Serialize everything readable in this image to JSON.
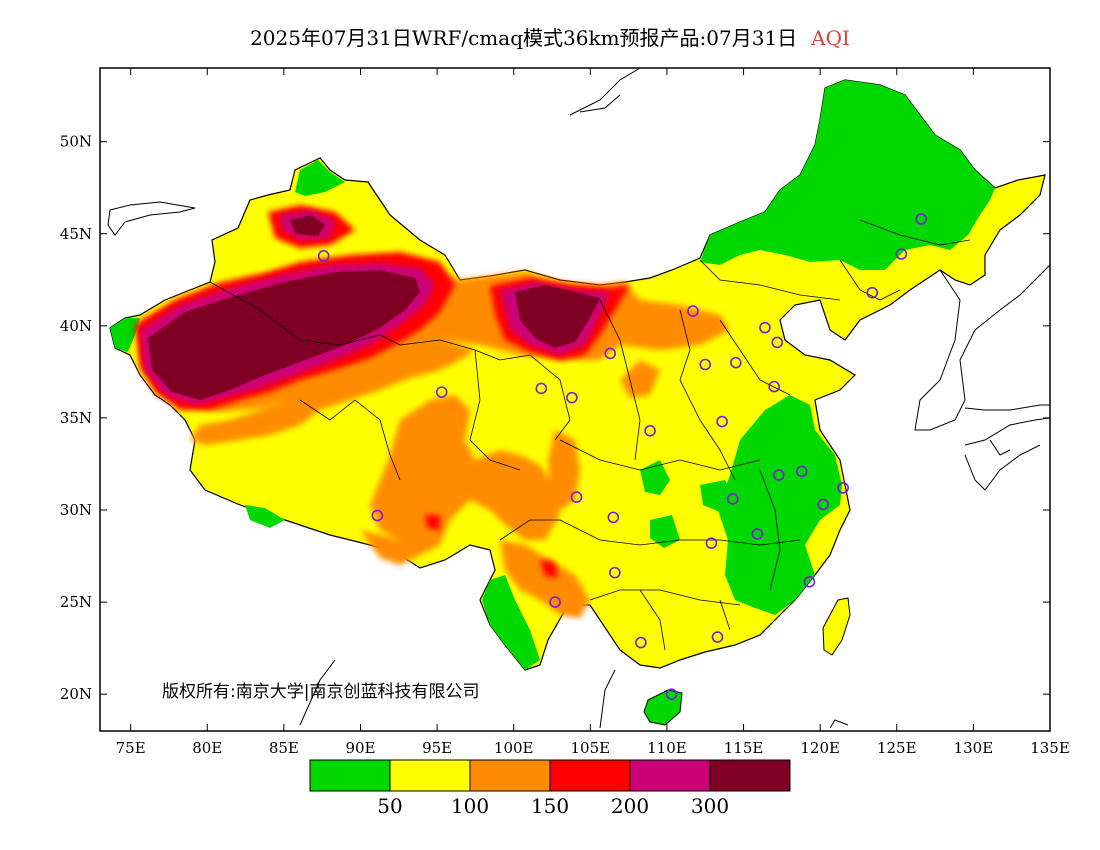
{
  "title": {
    "main": "2025年07月31日WRF/cmaq模式36km预报产品:07月31日",
    "variable": "AQI",
    "variable_color": "#d4453c"
  },
  "map": {
    "lat_labels": [
      "50N",
      "45N",
      "40N",
      "35N",
      "30N",
      "25N",
      "20N"
    ],
    "lat_values": [
      50,
      45,
      40,
      35,
      30,
      25,
      20
    ],
    "lon_labels": [
      "75E",
      "80E",
      "85E",
      "90E",
      "95E",
      "100E",
      "105E",
      "110E",
      "115E",
      "120E",
      "125E",
      "130E",
      "135E"
    ],
    "lon_values": [
      75,
      80,
      85,
      90,
      95,
      100,
      105,
      110,
      115,
      120,
      125,
      130,
      135
    ],
    "extent": {
      "lon_min": 73,
      "lon_max": 135,
      "lat_min": 18,
      "lat_max": 54
    },
    "copyright": "版权所有:南京大学|南京创蓝科技有限公司"
  },
  "legend": {
    "colors": [
      "#00d800",
      "#ffff00",
      "#ff8c00",
      "#ff0000",
      "#cc0077",
      "#7f0022"
    ],
    "labels": [
      "50",
      "100",
      "150",
      "200",
      "300"
    ],
    "categories": [
      "0-50",
      "50-100",
      "100-150",
      "150-200",
      "200-300",
      ">300"
    ]
  },
  "stations": [
    {
      "lon": 126.6,
      "lat": 45.8
    },
    {
      "lon": 125.3,
      "lat": 43.9
    },
    {
      "lon": 123.4,
      "lat": 41.8
    },
    {
      "lon": 116.4,
      "lat": 39.9
    },
    {
      "lon": 117.2,
      "lat": 39.1
    },
    {
      "lon": 111.7,
      "lat": 40.8
    },
    {
      "lon": 114.5,
      "lat": 38.0
    },
    {
      "lon": 112.5,
      "lat": 37.9
    },
    {
      "lon": 106.3,
      "lat": 38.5
    },
    {
      "lon": 103.8,
      "lat": 36.1
    },
    {
      "lon": 101.8,
      "lat": 36.6
    },
    {
      "lon": 108.9,
      "lat": 34.3
    },
    {
      "lon": 113.6,
      "lat": 34.8
    },
    {
      "lon": 117.0,
      "lat": 36.7
    },
    {
      "lon": 117.3,
      "lat": 31.9
    },
    {
      "lon": 118.8,
      "lat": 32.1
    },
    {
      "lon": 121.5,
      "lat": 31.2
    },
    {
      "lon": 120.2,
      "lat": 30.3
    },
    {
      "lon": 114.3,
      "lat": 30.6
    },
    {
      "lon": 115.9,
      "lat": 28.7
    },
    {
      "lon": 112.9,
      "lat": 28.2
    },
    {
      "lon": 119.3,
      "lat": 26.1
    },
    {
      "lon": 113.3,
      "lat": 23.1
    },
    {
      "lon": 108.3,
      "lat": 22.8
    },
    {
      "lon": 110.3,
      "lat": 20.0
    },
    {
      "lon": 106.6,
      "lat": 26.6
    },
    {
      "lon": 102.7,
      "lat": 25.0
    },
    {
      "lon": 104.1,
      "lat": 30.7
    },
    {
      "lon": 106.5,
      "lat": 29.6
    },
    {
      "lon": 91.1,
      "lat": 29.7
    },
    {
      "lon": 87.6,
      "lat": 43.8
    },
    {
      "lon": 95.3,
      "lat": 36.4
    }
  ]
}
